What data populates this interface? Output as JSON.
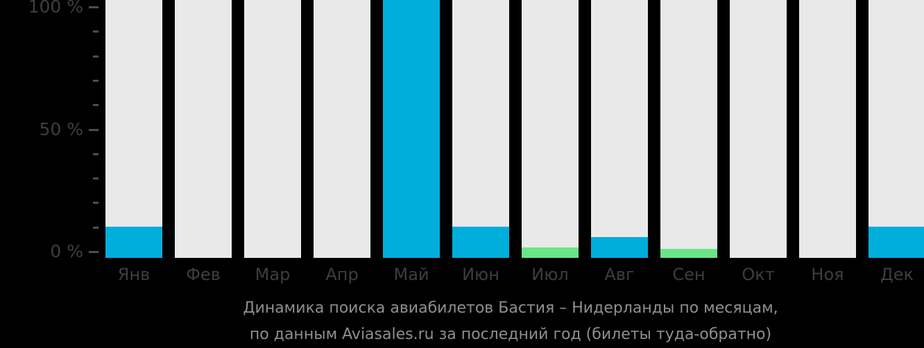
{
  "caption": {
    "line1": "Динамика поиска авиабилетов Бастия – Нидерланды по месяцам,",
    "line2": "по данным Aviasales.ru за последний год (билеты туда-обратно)"
  },
  "y_axis": {
    "major_ticks": [
      {
        "value": 100,
        "label": "100 %"
      },
      {
        "value": 50,
        "label": "50 %"
      },
      {
        "value": 0,
        "label": "0 %"
      }
    ],
    "minor_ticks": [
      90,
      80,
      70,
      60,
      40,
      30,
      20,
      10
    ]
  },
  "colors": {
    "background": "#000000",
    "bar_track": "#E9E9E9",
    "accent_cyan": "#00AEDB",
    "accent_green": "#69E687",
    "axis_text": "#3E3E3E",
    "tick": "#4E4E4E",
    "caption_text": "#8F8F8F"
  },
  "chart_data": {
    "type": "bar",
    "title": "Динамика поиска авиабилетов Бастия – Нидерланды по месяцам, по данным Aviasales.ru за последний год (билеты туда-обратно)",
    "categories": [
      "Янв",
      "Фев",
      "Мар",
      "Апр",
      "Май",
      "Июн",
      "Июл",
      "Авг",
      "Сен",
      "Окт",
      "Ноя",
      "Дек"
    ],
    "values": [
      12,
      0,
      0,
      0,
      100,
      12,
      4,
      8,
      3.5,
      0,
      0,
      12
    ],
    "bar_colors": [
      "#00AEDB",
      null,
      null,
      null,
      "#00AEDB",
      "#00AEDB",
      "#69E687",
      "#00AEDB",
      "#69E687",
      null,
      null,
      "#00AEDB"
    ],
    "xlabel": "",
    "ylabel": "",
    "ylim": [
      0,
      100
    ],
    "grid": false,
    "legend": "none",
    "track_full_height": true
  }
}
